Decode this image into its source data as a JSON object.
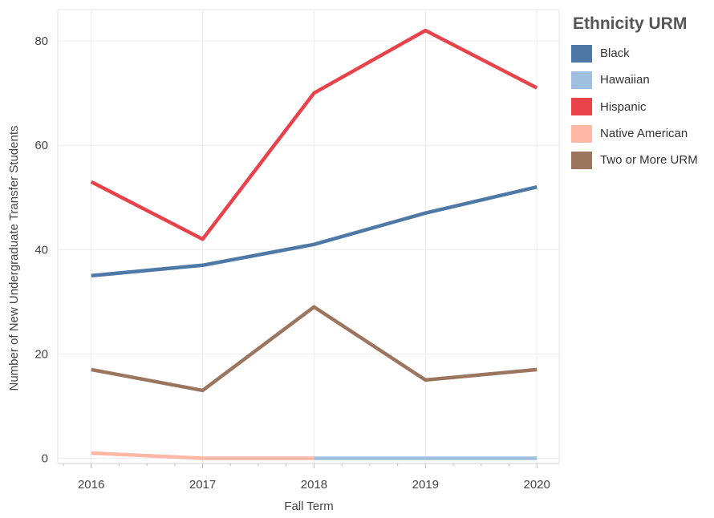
{
  "chart_data": {
    "type": "line",
    "xlabel": "Fall Term",
    "ylabel": "Number of New Undergraduate Transfer Students",
    "x": [
      2016,
      2017,
      2018,
      2019,
      2020
    ],
    "xlim": [
      2015.7,
      2020.2
    ],
    "ylim": [
      -1,
      86
    ],
    "yticks": [
      0,
      20,
      40,
      60,
      80
    ],
    "grid": true,
    "legend": {
      "title": "Ethnicity URM",
      "position": "right"
    },
    "series": [
      {
        "name": "Black",
        "color": "#4e79a7",
        "x": [
          2016,
          2017,
          2018,
          2019,
          2020
        ],
        "values": [
          35,
          37,
          41,
          47,
          52
        ]
      },
      {
        "name": "Hawaiian",
        "color": "#a0bfdf",
        "x": [
          2018,
          2019,
          2020
        ],
        "values": [
          0,
          0,
          0
        ]
      },
      {
        "name": "Hispanic",
        "color": "#e8434a",
        "x": [
          2016,
          2017,
          2018,
          2019,
          2020
        ],
        "values": [
          53,
          42,
          70,
          82,
          71
        ]
      },
      {
        "name": "Native American",
        "color": "#ffb7a6",
        "x": [
          2016,
          2017,
          2018
        ],
        "values": [
          1,
          0,
          0
        ]
      },
      {
        "name": "Two or More URM",
        "color": "#9c755f",
        "x": [
          2016,
          2017,
          2018,
          2019,
          2020
        ],
        "values": [
          17,
          13,
          29,
          15,
          17
        ]
      }
    ]
  }
}
